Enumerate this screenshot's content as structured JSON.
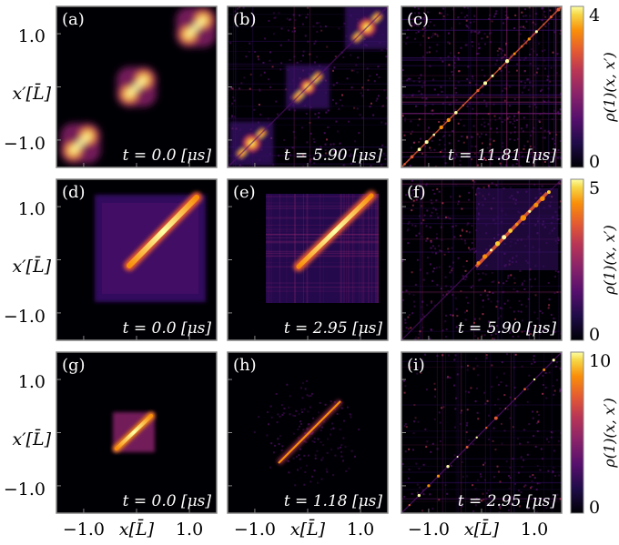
{
  "chart_data": {
    "type": "heatmap",
    "colormap": "inferno",
    "xlabel": "x[L̄]",
    "ylabel": "x′[L̄]",
    "x_ticks": [
      "−1.0",
      "1.0"
    ],
    "y_ticks": [
      "1.0",
      "−1.0"
    ],
    "rows": [
      {
        "colorbar": {
          "label": "ρ(1)(x, x′)",
          "min": 0,
          "max": 4,
          "ticks": [
            "0",
            "4"
          ]
        },
        "panels": [
          {
            "letter": "(a)",
            "time": "t = 0.0 [μs]",
            "kind": "blocks3"
          },
          {
            "letter": "(b)",
            "time": "t = 5.90 [μs]",
            "kind": "blocks3-noisy"
          },
          {
            "letter": "(c)",
            "time": "t = 11.81 [μs]",
            "kind": "diag-noise"
          }
        ]
      },
      {
        "colorbar": {
          "label": "ρ(1)(x, x′)",
          "min": 0,
          "max": 5,
          "ticks": [
            "0",
            "5"
          ]
        },
        "panels": [
          {
            "letter": "(d)",
            "time": "t = 0.0 [μs]",
            "kind": "wide-block"
          },
          {
            "letter": "(e)",
            "time": "t = 2.95 [μs]",
            "kind": "wide-block-noisy"
          },
          {
            "letter": "(f)",
            "time": "t = 5.90 [μs]",
            "kind": "half-diag-noise"
          }
        ]
      },
      {
        "colorbar": {
          "label": "ρ(1)(x, x′)",
          "min": 0,
          "max": 10,
          "ticks": [
            "0",
            "10"
          ]
        },
        "panels": [
          {
            "letter": "(g)",
            "time": "t = 0.0 [μs]",
            "kind": "small-block"
          },
          {
            "letter": "(h)",
            "time": "t = 1.18 [μs]",
            "kind": "thin-diag"
          },
          {
            "letter": "(i)",
            "time": "t = 2.95 [μs]",
            "kind": "sparse-diag"
          }
        ]
      }
    ]
  }
}
